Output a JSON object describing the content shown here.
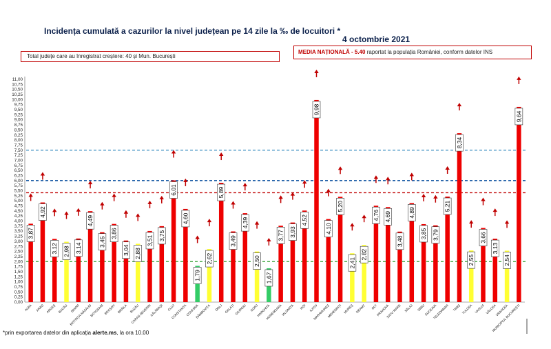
{
  "header": {
    "title": "Incidența cumulată a cazurilor la nivel județean pe 14 zile la ‰ de locuitori *",
    "date": "4 octombrie 2021",
    "growth_note": "Total județe care au înregistrat creștere:  40 și Mun. București",
    "national_label": "MEDIA NAȚIONALĂ",
    "national_value": "- 5.40",
    "national_note": " raportat la populația României, conform datelor INS"
  },
  "footnote": {
    "prefix": "*prin exportarea datelor din aplicația ",
    "app": "alerte.ms",
    "suffix": ", la ora 10.00"
  },
  "colors": {
    "red": "#ee0000",
    "yellow": "#ffff33",
    "green": "#33cc66",
    "national_line": "#c00000",
    "blue_line": "#1f5fa8",
    "light_blue_line": "#3a8fc0",
    "green_line": "#2e9e2e",
    "arrow": "#c00000"
  },
  "chart_data": {
    "type": "bar",
    "ylim": [
      0,
      11
    ],
    "ytick_step": 0.25,
    "reference_lines": [
      {
        "value": 7.5,
        "style": "dashed",
        "color": "light_blue_line"
      },
      {
        "value": 6.0,
        "style": "dashed",
        "color": "blue_line"
      },
      {
        "value": 5.4,
        "style": "dashed",
        "color": "national_line"
      },
      {
        "value": 2.0,
        "style": "dashed",
        "color": "green_line"
      }
    ],
    "categories": [
      "ALBA",
      "ARAD",
      "ARGEȘ",
      "BACĂU",
      "BIHOR",
      "BISTRIȚA-NĂSĂUD",
      "BOTOȘANI",
      "BRAȘOV",
      "BRĂILA",
      "BUZĂU",
      "CARAȘ-SEVERIN",
      "CĂLĂRAȘI",
      "CLUJ",
      "CONSTANȚA",
      "COVASNA",
      "DÂMBOVIȚA",
      "DOLJ",
      "GALAȚI",
      "GIURGIU",
      "GORJ",
      "HARGHITA",
      "HUNEDOARA",
      "IALOMIȚA",
      "IAȘI",
      "ILFOV",
      "MARAMUREȘ",
      "MEHEDINȚI",
      "MUREȘ",
      "NEAMȚ",
      "OLT",
      "PRAHOVA",
      "SATU MARE",
      "SĂLAJ",
      "SIBIU",
      "SUCEAVA",
      "TELEORMAN",
      "TIMIȘ",
      "TULCEA",
      "VASLUI",
      "VÂLCEA",
      "VRANCEA",
      "MUNICIPIUL BUCUREȘTI"
    ],
    "values": [
      3.87,
      4.92,
      3.12,
      2.98,
      3.14,
      4.49,
      3.45,
      3.86,
      3.04,
      2.88,
      3.51,
      3.75,
      6.01,
      4.6,
      1.79,
      2.62,
      5.89,
      3.49,
      4.39,
      2.5,
      1.67,
      3.77,
      3.93,
      4.52,
      9.98,
      4.1,
      5.2,
      2.41,
      2.82,
      4.76,
      4.69,
      3.48,
      4.89,
      3.85,
      3.79,
      5.21,
      8.34,
      2.55,
      3.66,
      3.13,
      2.54,
      9.64
    ],
    "value_labels": [
      "3,87",
      "4,92",
      "3,12",
      "2,98",
      "3,14",
      "4,49",
      "3,45",
      "3,86",
      "3,04",
      "2,88",
      "3,51",
      "3,75",
      "6,01",
      "4,60",
      "1,79",
      "2,62",
      "5,89",
      "3,49",
      "4,39",
      "2,50",
      "1,67",
      "3,77",
      "3,93",
      "4,52",
      "9,98",
      "4,10",
      "5,20",
      "2,41",
      "2,82",
      "4,76",
      "4,69",
      "3,48",
      "4,89",
      "3,85",
      "3,79",
      "5,21",
      "8,34",
      "2,55",
      "3,66",
      "3,13",
      "2,54",
      "9,64"
    ],
    "trend_up": [
      true,
      true,
      true,
      true,
      true,
      true,
      true,
      true,
      true,
      true,
      true,
      true,
      true,
      true,
      true,
      true,
      true,
      true,
      true,
      true,
      true,
      true,
      true,
      true,
      true,
      true,
      true,
      true,
      true,
      true,
      true,
      false,
      true,
      true,
      true,
      true,
      true,
      true,
      true,
      true,
      true,
      true
    ],
    "bar_colors": [
      "red",
      "red",
      "red",
      "yellow",
      "red",
      "red",
      "red",
      "red",
      "red",
      "yellow",
      "red",
      "red",
      "red",
      "red",
      "green",
      "yellow",
      "red",
      "red",
      "red",
      "yellow",
      "green",
      "red",
      "red",
      "red",
      "red",
      "red",
      "red",
      "yellow",
      "yellow",
      "red",
      "red",
      "red",
      "red",
      "red",
      "red",
      "red",
      "red",
      "yellow",
      "red",
      "red",
      "yellow",
      "red"
    ]
  }
}
